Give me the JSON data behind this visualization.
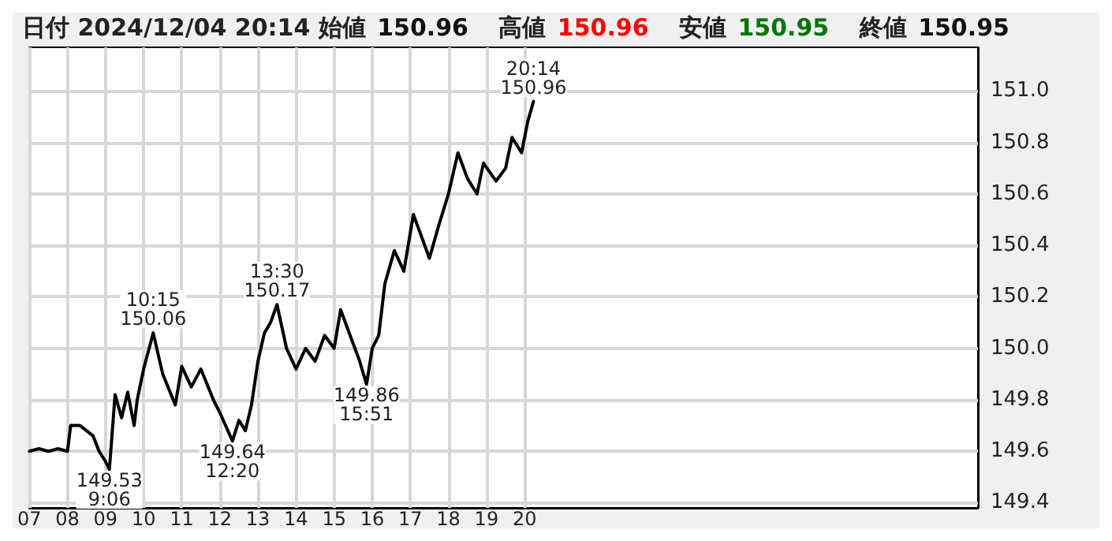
{
  "chart_data": {
    "type": "line",
    "title": "日付 2024/12/04 20:14 始値 150.96 高値 150.96 安値 150.95 終値 150.95",
    "series": [
      {
        "color": "#000000",
        "x": [
          7,
          7.25,
          7.5,
          7.75,
          8,
          8.083,
          8.33,
          8.5,
          8.67,
          8.83,
          9,
          9.1,
          9.25,
          9.42,
          9.58,
          9.75,
          9.83,
          10,
          10.25,
          10.5,
          10.83,
          11,
          11.25,
          11.5,
          11.83,
          12,
          12.33,
          12.5,
          12.67,
          12.83,
          13,
          13.17,
          13.33,
          13.5,
          13.75,
          14,
          14.25,
          14.5,
          14.75,
          15,
          15.17,
          15.42,
          15.67,
          15.85,
          16,
          16.17,
          16.33,
          16.58,
          16.83,
          17.08,
          17.33,
          17.5,
          17.75,
          18,
          18.25,
          18.5,
          18.75,
          18.92,
          19.25,
          19.5,
          19.67,
          19.92,
          20.08,
          20.233
        ],
        "values": [
          149.6,
          149.61,
          149.6,
          149.61,
          149.6,
          149.7,
          149.7,
          149.68,
          149.66,
          149.6,
          149.56,
          149.53,
          149.82,
          149.73,
          149.83,
          149.7,
          149.8,
          149.92,
          150.06,
          149.9,
          149.78,
          149.93,
          149.85,
          149.92,
          149.8,
          149.75,
          149.64,
          149.72,
          149.68,
          149.78,
          149.95,
          150.06,
          150.1,
          150.17,
          150.0,
          149.92,
          150.0,
          149.95,
          150.05,
          150.0,
          150.15,
          150.05,
          149.95,
          149.86,
          150.0,
          150.05,
          150.25,
          150.38,
          150.3,
          150.52,
          150.42,
          150.35,
          150.48,
          150.6,
          150.76,
          150.66,
          150.6,
          150.72,
          150.65,
          150.7,
          150.82,
          150.76,
          150.88,
          150.96
        ]
      }
    ],
    "xlim": [
      7,
      31.9
    ],
    "xticks": [
      {
        "value": 7,
        "label": "07"
      },
      {
        "value": 8,
        "label": "08"
      },
      {
        "value": 9,
        "label": "09"
      },
      {
        "value": 10,
        "label": "10"
      },
      {
        "value": 11,
        "label": "11"
      },
      {
        "value": 12,
        "label": "12"
      },
      {
        "value": 13,
        "label": "13"
      },
      {
        "value": 14,
        "label": "14"
      },
      {
        "value": 15,
        "label": "15"
      },
      {
        "value": 16,
        "label": "16"
      },
      {
        "value": 17,
        "label": "17"
      },
      {
        "value": 18,
        "label": "18"
      },
      {
        "value": 19,
        "label": "19"
      },
      {
        "value": 20,
        "label": "20"
      }
    ],
    "ylim": [
      149.38,
      151.17
    ],
    "yticks": [
      {
        "value": 149.4,
        "label": "149.4"
      },
      {
        "value": 149.6,
        "label": "149.6"
      },
      {
        "value": 149.8,
        "label": "149.8"
      },
      {
        "value": 150.0,
        "label": "150.0"
      },
      {
        "value": 150.2,
        "label": "150.2"
      },
      {
        "value": 150.4,
        "label": "150.4"
      },
      {
        "value": 150.6,
        "label": "150.6"
      },
      {
        "value": 150.8,
        "label": "150.8"
      },
      {
        "value": 151.0,
        "label": "151.0"
      }
    ],
    "grid": true,
    "marker": "none",
    "line_style": "solid",
    "annotations": [
      {
        "text": "149.53\n9:06",
        "x": 9.1,
        "y": 149.53
      },
      {
        "text": "10:15\n150.06",
        "x": 10.25,
        "y": 150.06
      },
      {
        "text": "149.64\n12:20",
        "x": 12.33,
        "y": 149.64
      },
      {
        "text": "13:30\n150.17",
        "x": 13.5,
        "y": 150.17
      },
      {
        "text": "149.86\n15:51",
        "x": 15.85,
        "y": 149.86
      },
      {
        "text": "20:14\n150.96",
        "x": 20.233,
        "y": 150.96
      }
    ]
  }
}
